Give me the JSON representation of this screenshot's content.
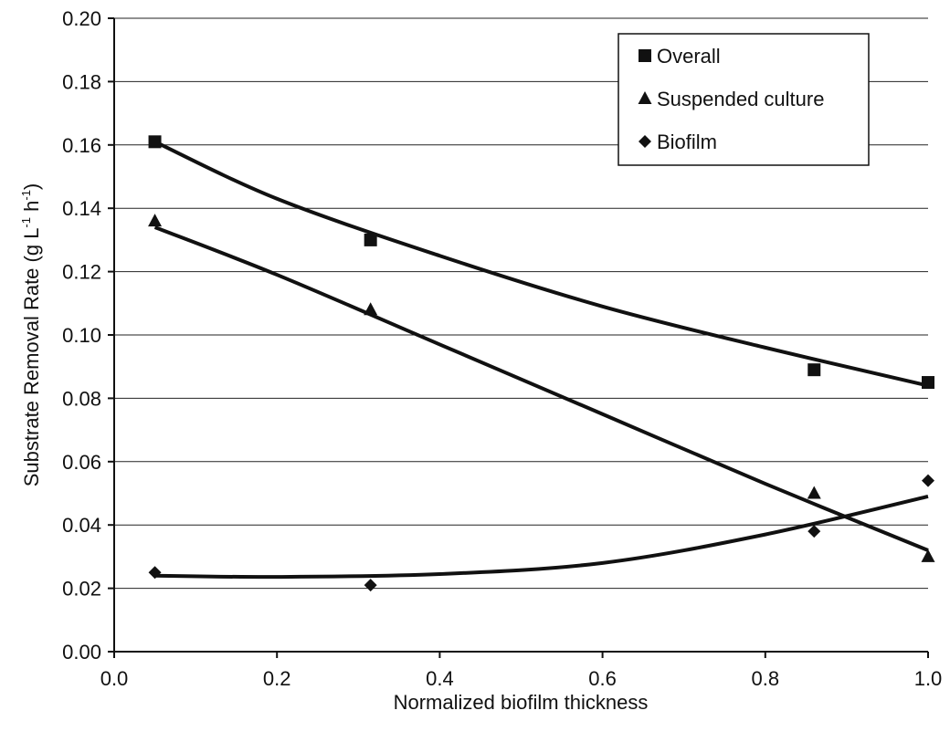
{
  "chart_data": {
    "type": "scatter",
    "xlabel": "Normalized biofilm thickness",
    "ylabel": {
      "prefix": "Substrate Removal Rate (g L",
      "exp1": "-1",
      "mid": " h",
      "exp2": "-1",
      "suffix": ")"
    },
    "xlim": [
      0.0,
      1.0
    ],
    "ylim": [
      0.0,
      0.2
    ],
    "x_ticks": [
      "0.0",
      "0.2",
      "0.4",
      "0.6",
      "0.8",
      "1.0"
    ],
    "y_ticks": [
      "0.00",
      "0.02",
      "0.04",
      "0.06",
      "0.08",
      "0.10",
      "0.12",
      "0.14",
      "0.16",
      "0.18",
      "0.20"
    ],
    "grid": "horizontal",
    "legend_position": "top-right",
    "series": [
      {
        "name": "Overall",
        "marker": "square",
        "x": [
          0.05,
          0.315,
          0.86,
          1.0
        ],
        "y": [
          0.161,
          0.13,
          0.089,
          0.085
        ],
        "trendline": {
          "x": [
            0.05,
            0.2,
            0.4,
            0.6,
            0.8,
            1.0
          ],
          "y": [
            0.161,
            0.143,
            0.125,
            0.109,
            0.096,
            0.084
          ]
        }
      },
      {
        "name": "Suspended culture",
        "marker": "triangle",
        "x": [
          0.05,
          0.315,
          0.86,
          1.0
        ],
        "y": [
          0.136,
          0.108,
          0.05,
          0.03
        ],
        "trendline": {
          "x": [
            0.05,
            0.2,
            0.4,
            0.6,
            0.8,
            1.0
          ],
          "y": [
            0.134,
            0.119,
            0.097,
            0.075,
            0.053,
            0.032
          ]
        }
      },
      {
        "name": "Biofilm",
        "marker": "diamond",
        "x": [
          0.05,
          0.315,
          0.86,
          1.0
        ],
        "y": [
          0.025,
          0.021,
          0.038,
          0.054
        ],
        "trendline": {
          "x": [
            0.05,
            0.2,
            0.4,
            0.6,
            0.8,
            1.0
          ],
          "y": [
            0.024,
            0.0236,
            0.0245,
            0.028,
            0.037,
            0.049
          ]
        }
      }
    ]
  }
}
